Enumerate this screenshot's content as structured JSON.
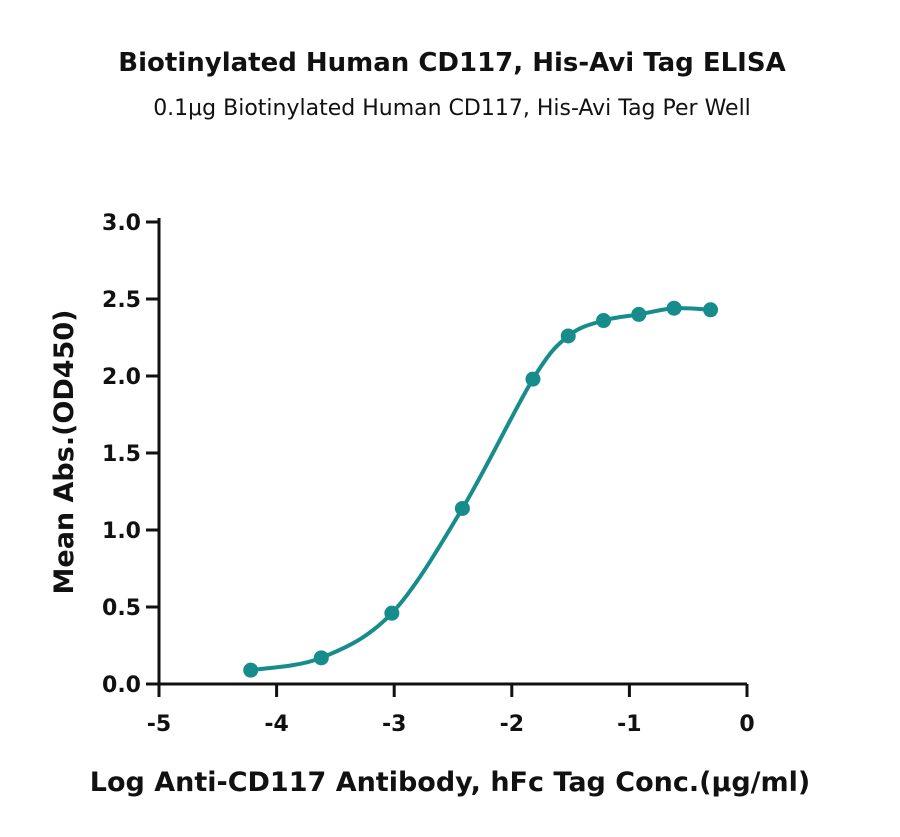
{
  "chart_data": {
    "type": "scatter",
    "title": "Biotinylated Human CD117, His-Avi Tag ELISA",
    "subtitle": "0.1μg Biotinylated Human CD117, His-Avi Tag Per Well",
    "xlabel": "Log Anti-CD117 Antibody, hFc Tag Conc.(μg/ml)",
    "ylabel": "Mean Abs.(OD450)",
    "xlim": [
      -5,
      0
    ],
    "ylim": [
      0,
      3
    ],
    "xticks": [
      "-5",
      "-4",
      "-3",
      "-2",
      "-1",
      "0"
    ],
    "yticks": [
      "0.0",
      "0.5",
      "1.0",
      "1.5",
      "2.0",
      "2.5",
      "3.0"
    ],
    "grid": false,
    "series": [
      {
        "x": [
          -4.22,
          -3.62,
          -3.02,
          -2.42,
          -1.82,
          -1.52,
          -1.22,
          -0.92,
          -0.62,
          -0.31
        ],
        "values": [
          0.09,
          0.17,
          0.46,
          1.14,
          1.98,
          2.26,
          2.36,
          2.4,
          2.44,
          2.43
        ],
        "fit": "sigmoidal four-parameter logistic curve"
      }
    ],
    "color": "#178c8c"
  }
}
